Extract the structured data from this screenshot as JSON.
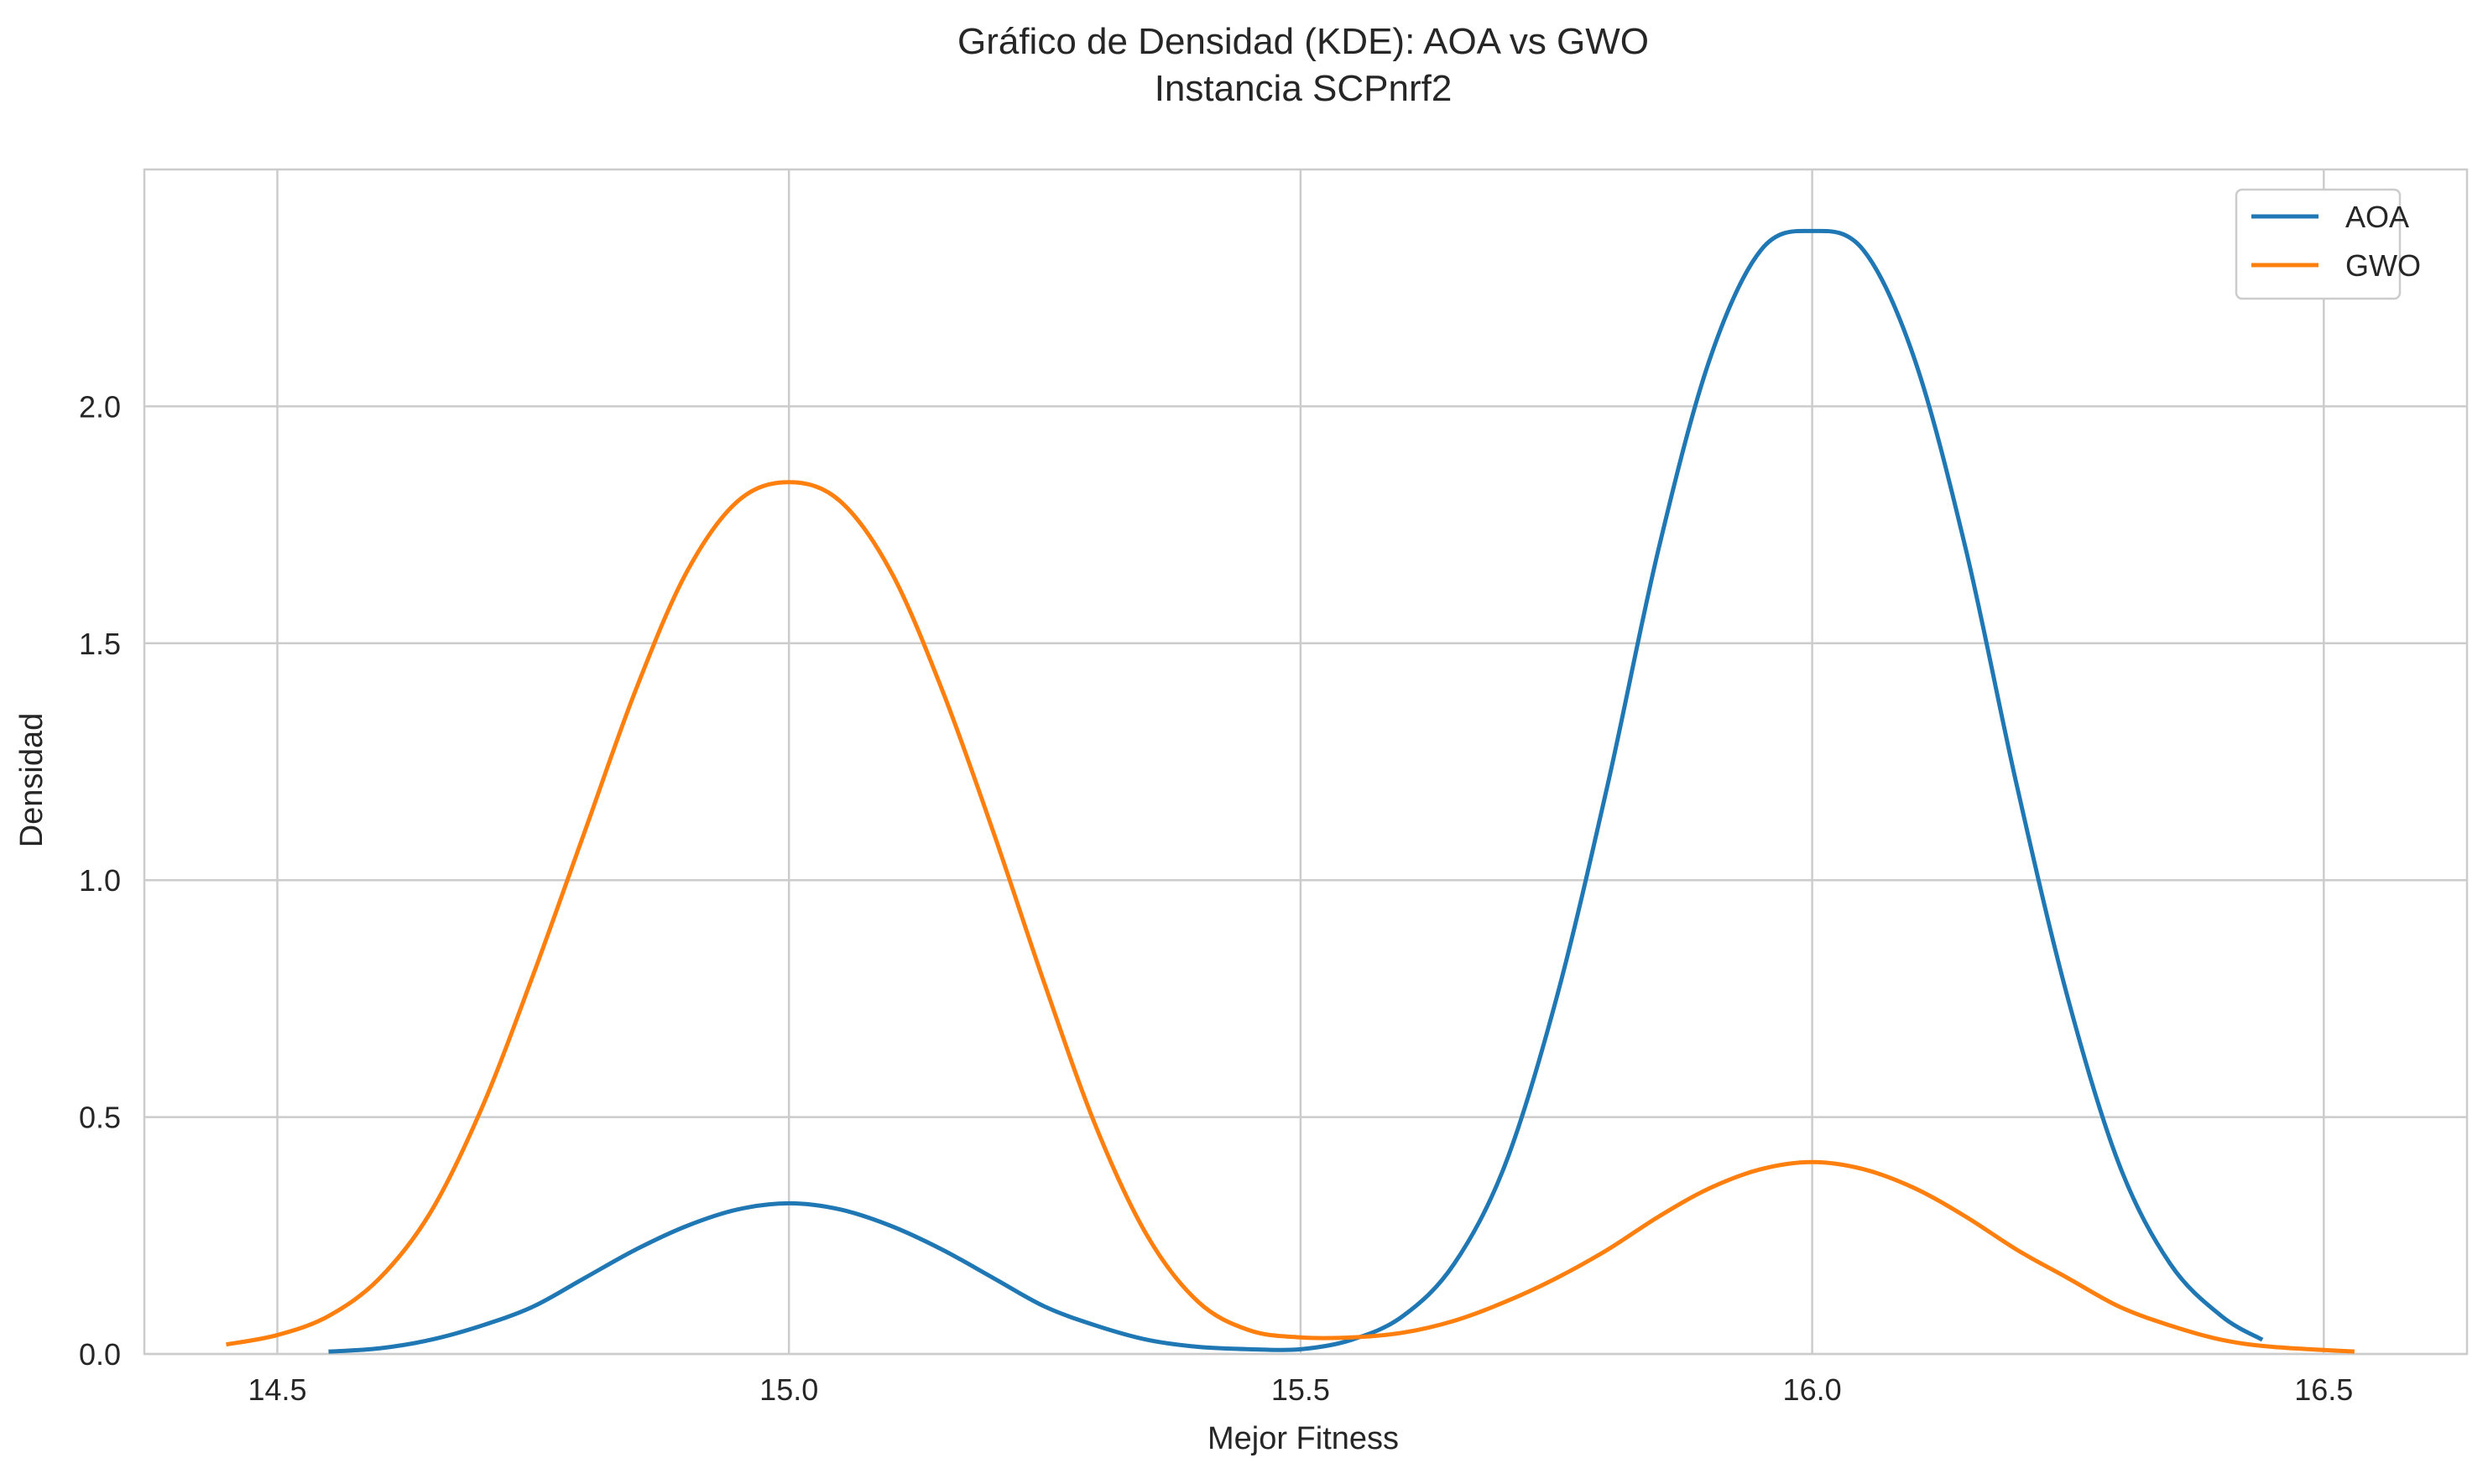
{
  "chart_data": {
    "type": "line",
    "title": "Gráfico de Densidad (KDE): AOA vs GWO",
    "subtitle": "Instancia SCPnrf2",
    "xlabel": "Mejor Fitness",
    "ylabel": "Densidad",
    "xlim": [
      14.37,
      16.64
    ],
    "ylim": [
      0,
      2.5
    ],
    "xticks": [
      14.5,
      15.0,
      15.5,
      16.0,
      16.5
    ],
    "xtick_labels": [
      "14.5",
      "15.0",
      "15.5",
      "16.0",
      "16.5"
    ],
    "yticks": [
      0.0,
      0.5,
      1.0,
      1.5,
      2.0
    ],
    "ytick_labels": [
      "0.0",
      "0.5",
      "1.0",
      "1.5",
      "2.0"
    ],
    "grid": true,
    "legend_position": "top-right",
    "series": [
      {
        "name": "AOA",
        "color": "#1f77b4",
        "x": [
          14.55,
          14.6,
          14.65,
          14.7,
          14.75,
          14.8,
          14.85,
          14.9,
          14.95,
          15.0,
          15.05,
          15.1,
          15.15,
          15.2,
          15.25,
          15.3,
          15.35,
          15.4,
          15.45,
          15.5,
          15.55,
          15.6,
          15.65,
          15.7,
          15.75,
          15.8,
          15.85,
          15.9,
          15.95,
          16.0,
          16.05,
          16.1,
          16.15,
          16.2,
          16.25,
          16.3,
          16.35,
          16.4,
          16.44
        ],
        "y": [
          0.005,
          0.012,
          0.03,
          0.06,
          0.1,
          0.16,
          0.22,
          0.27,
          0.305,
          0.318,
          0.305,
          0.27,
          0.22,
          0.16,
          0.1,
          0.06,
          0.03,
          0.015,
          0.01,
          0.01,
          0.03,
          0.08,
          0.19,
          0.4,
          0.75,
          1.2,
          1.7,
          2.1,
          2.33,
          2.37,
          2.33,
          2.1,
          1.7,
          1.2,
          0.75,
          0.4,
          0.19,
          0.08,
          0.03
        ]
      },
      {
        "name": "GWO",
        "color": "#ff7f0e",
        "x": [
          14.45,
          14.5,
          14.55,
          14.6,
          14.65,
          14.7,
          14.75,
          14.8,
          14.85,
          14.9,
          14.95,
          15.0,
          15.05,
          15.1,
          15.15,
          15.2,
          15.25,
          15.3,
          15.35,
          15.4,
          15.45,
          15.5,
          15.55,
          15.6,
          15.65,
          15.7,
          15.75,
          15.8,
          15.85,
          15.9,
          15.95,
          16.0,
          16.05,
          16.1,
          16.15,
          16.2,
          16.25,
          16.3,
          16.35,
          16.4,
          16.45,
          16.53
        ],
        "y": [
          0.02,
          0.04,
          0.08,
          0.16,
          0.3,
          0.52,
          0.8,
          1.1,
          1.4,
          1.65,
          1.8,
          1.84,
          1.8,
          1.65,
          1.4,
          1.1,
          0.78,
          0.48,
          0.25,
          0.11,
          0.05,
          0.035,
          0.035,
          0.045,
          0.07,
          0.11,
          0.16,
          0.22,
          0.29,
          0.35,
          0.39,
          0.405,
          0.39,
          0.35,
          0.29,
          0.22,
          0.16,
          0.1,
          0.06,
          0.03,
          0.015,
          0.005
        ]
      }
    ]
  }
}
